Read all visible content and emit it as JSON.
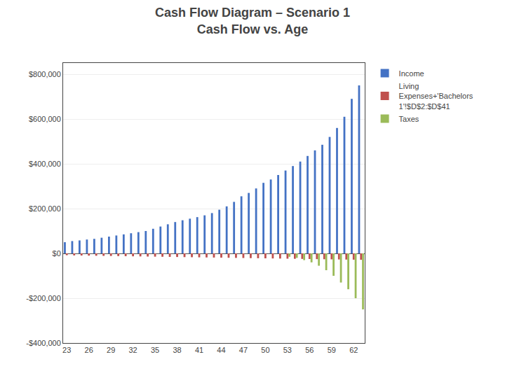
{
  "chart_data": {
    "type": "bar",
    "title": "Cash Flow Diagram – Scenario 1",
    "subtitle": "Cash Flow vs. Age",
    "categories": [
      "23",
      null,
      null,
      "26",
      null,
      null,
      "29",
      null,
      null,
      "32",
      null,
      null,
      "35",
      null,
      null,
      "38",
      null,
      null,
      "41",
      null,
      null,
      "44",
      null,
      null,
      "47",
      null,
      null,
      "50",
      null,
      null,
      "53",
      null,
      null,
      "56",
      null,
      null,
      "59",
      null,
      null,
      "62",
      null
    ],
    "series": [
      {
        "name": "Income",
        "color": "#4472c4",
        "values": [
          50000,
          55000,
          58000,
          62000,
          65000,
          70000,
          75000,
          80000,
          85000,
          90000,
          95000,
          100000,
          110000,
          120000,
          130000,
          140000,
          148000,
          155000,
          162000,
          170000,
          180000,
          195000,
          210000,
          230000,
          255000,
          270000,
          290000,
          315000,
          330000,
          350000,
          370000,
          390000,
          410000,
          435000,
          460000,
          485000,
          520000,
          560000,
          610000,
          690000,
          750000
        ]
      },
      {
        "name": "Living\nExpenses+'Bachelors\n1'!$D$2:$D$41",
        "color": "#c0504d",
        "values": [
          -8000,
          -9000,
          -9500,
          -10000,
          -10500,
          -11000,
          -11500,
          -12000,
          -12500,
          -13000,
          -13500,
          -14000,
          -14500,
          -15000,
          -15500,
          -16000,
          -16500,
          -17000,
          -17500,
          -18000,
          -18500,
          -19000,
          -19500,
          -20000,
          -20500,
          -21000,
          -21500,
          -22000,
          -22500,
          -23000,
          -23500,
          -24000,
          -24500,
          -25000,
          -25500,
          -26000,
          -26500,
          -27000,
          -27500,
          -28000,
          -28500
        ]
      },
      {
        "name": "Taxes",
        "color": "#9bbb59",
        "values": [
          0,
          0,
          0,
          0,
          0,
          0,
          0,
          0,
          0,
          0,
          0,
          0,
          0,
          0,
          0,
          0,
          0,
          0,
          0,
          0,
          0,
          0,
          0,
          0,
          0,
          0,
          0,
          0,
          0,
          0,
          -15000,
          -20000,
          -30000,
          -40000,
          -55000,
          -75000,
          -100000,
          -130000,
          -160000,
          -200000,
          -250000
        ]
      }
    ],
    "ylim": [
      -400000,
      850000
    ],
    "yticks": [
      {
        "value": -400000,
        "label": "-$400,000"
      },
      {
        "value": -200000,
        "label": "-$200,000"
      },
      {
        "value": 0,
        "label": "$0"
      },
      {
        "value": 200000,
        "label": "$200,000"
      },
      {
        "value": 400000,
        "label": "$400,000"
      },
      {
        "value": 600000,
        "label": "$600,000"
      },
      {
        "value": 800000,
        "label": "$800,000"
      }
    ],
    "grid": true,
    "legend": "right"
  }
}
